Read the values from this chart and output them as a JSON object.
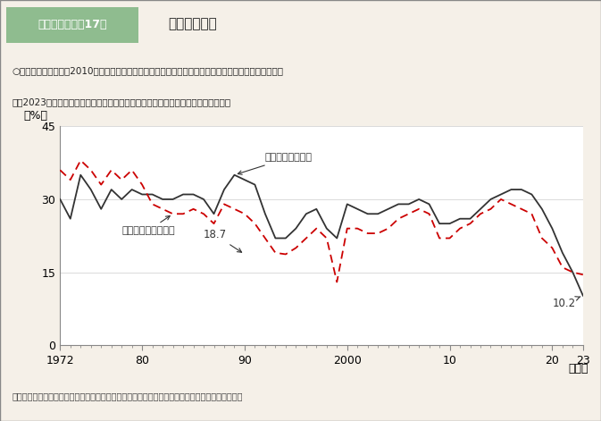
{
  "title_box": "第２－（１）－17図",
  "title_main": "充足率の推移",
  "subtitle_line1": "○　求人の充足率は、2010年代以降、低下傾向。特にフルタイム労働者において大きく低下しており、",
  "subtitle_line2": "　　2023年はこの半世紀の中で最低水準にあり、欠員の充足が困難となっている。",
  "ylabel": "（%）",
  "xlabel": "（年）",
  "source": "資料出所　厚生労働省「職業安定業務統計」をもとに厚生労働者政策統括官付政策統括室にて作成",
  "ylim": [
    0,
    45
  ],
  "yticks": [
    0,
    15,
    30,
    45
  ],
  "background_color": "#f5f0e8",
  "plot_bg": "#ffffff",
  "fulltime_color": "#333333",
  "parttime_color": "#cc0000",
  "label_fulltime": "フルタイム労働者",
  "label_parttime": "パートタイム労働者",
  "annotation_18_7": "18.7",
  "annotation_10_2": "10.2",
  "years_fulltime": [
    1972,
    1973,
    1974,
    1975,
    1976,
    1977,
    1978,
    1979,
    1980,
    1981,
    1982,
    1983,
    1984,
    1985,
    1986,
    1987,
    1988,
    1989,
    1990,
    1991,
    1992,
    1993,
    1994,
    1995,
    1996,
    1997,
    1998,
    1999,
    2000,
    2001,
    2002,
    2003,
    2004,
    2005,
    2006,
    2007,
    2008,
    2009,
    2010,
    2011,
    2012,
    2013,
    2014,
    2015,
    2016,
    2017,
    2018,
    2019,
    2020,
    2021,
    2022,
    2023
  ],
  "values_fulltime": [
    30,
    26,
    35,
    32,
    28,
    32,
    30,
    32,
    31,
    31,
    30,
    30,
    31,
    31,
    30,
    27,
    32,
    35,
    34,
    33,
    27,
    22,
    22,
    24,
    27,
    28,
    24,
    22,
    29,
    28,
    27,
    27,
    28,
    29,
    29,
    30,
    29,
    25,
    25,
    26,
    26,
    28,
    30,
    31,
    32,
    32,
    31,
    28,
    24,
    19,
    15,
    10.2
  ],
  "years_parttime": [
    1972,
    1973,
    1974,
    1975,
    1976,
    1977,
    1978,
    1979,
    1980,
    1981,
    1982,
    1983,
    1984,
    1985,
    1986,
    1987,
    1988,
    1989,
    1990,
    1991,
    1992,
    1993,
    1994,
    1995,
    1996,
    1997,
    1998,
    1999,
    2000,
    2001,
    2002,
    2003,
    2004,
    2005,
    2006,
    2007,
    2008,
    2009,
    2010,
    2011,
    2012,
    2013,
    2014,
    2015,
    2016,
    2017,
    2018,
    2019,
    2020,
    2021,
    2022,
    2023
  ],
  "values_parttime": [
    36,
    34,
    38,
    36,
    33,
    36,
    34,
    36,
    33,
    29,
    28,
    27,
    27,
    28,
    27,
    25,
    29,
    28,
    27,
    25,
    22,
    19,
    18.7,
    20,
    22,
    24,
    22,
    13,
    24,
    24,
    23,
    23,
    24,
    26,
    27,
    28,
    27,
    22,
    22,
    24,
    25,
    27,
    28,
    30,
    29,
    28,
    27,
    22,
    20,
    16,
    15,
    14.5
  ]
}
